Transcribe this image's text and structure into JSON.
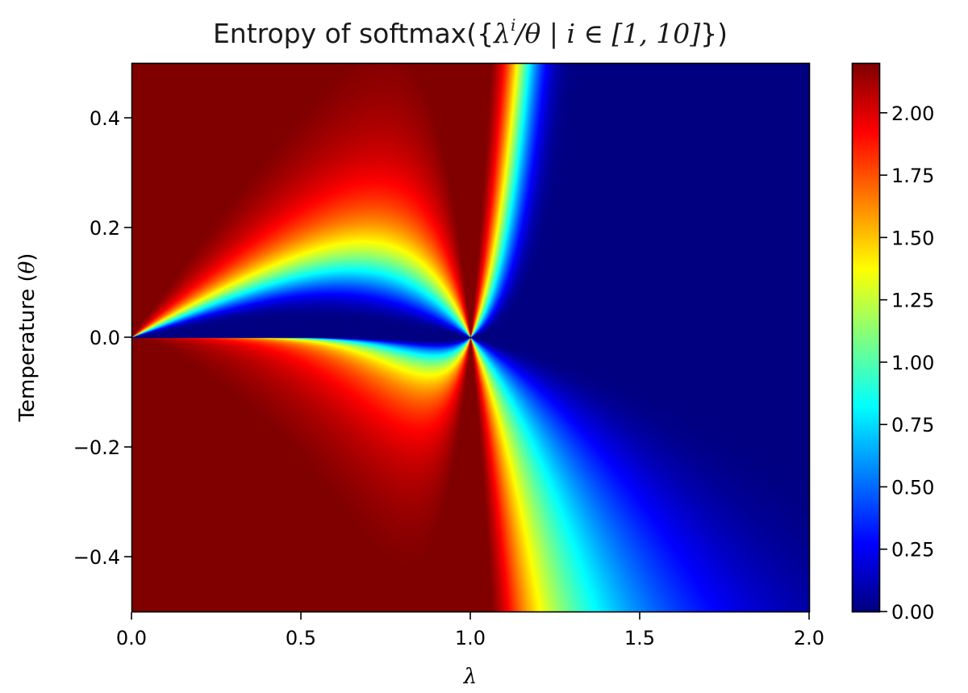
{
  "chart_data": {
    "type": "heatmap",
    "title_parts": {
      "prefix": "Entropy of softmax({",
      "base": "λ",
      "exponent": "i",
      "middle": "/θ | i ∈ [1, 10]",
      "suffix": "})"
    },
    "xlabel": "λ",
    "ylabel_text": "Temperature (",
    "ylabel_symbol": "θ",
    "ylabel_close": ")",
    "x_range": [
      0.0,
      2.0
    ],
    "y_range": [
      -0.5,
      0.5
    ],
    "x_ticks": [
      0.0,
      0.5,
      1.0,
      1.5,
      2.0
    ],
    "x_tick_labels": [
      "0.0",
      "0.5",
      "1.0",
      "1.5",
      "2.0"
    ],
    "y_ticks": [
      -0.4,
      -0.2,
      0.0,
      0.2,
      0.4
    ],
    "y_tick_labels": [
      "−0.4",
      "−0.2",
      "0.0",
      "0.2",
      "0.4"
    ],
    "value_formula": "Shannon entropy of softmax over lambda^i / theta for i = 1..10",
    "colormap": "jet",
    "color_range": [
      0.0,
      2.2
    ],
    "colorbar_ticks": [
      0.0,
      0.25,
      0.5,
      0.75,
      1.0,
      1.25,
      1.5,
      1.75,
      2.0
    ],
    "colorbar_tick_labels": [
      "0.00",
      "0.25",
      "0.50",
      "0.75",
      "1.00",
      "1.25",
      "1.50",
      "1.75",
      "2.00"
    ],
    "n_terms": 10,
    "grid": false
  }
}
